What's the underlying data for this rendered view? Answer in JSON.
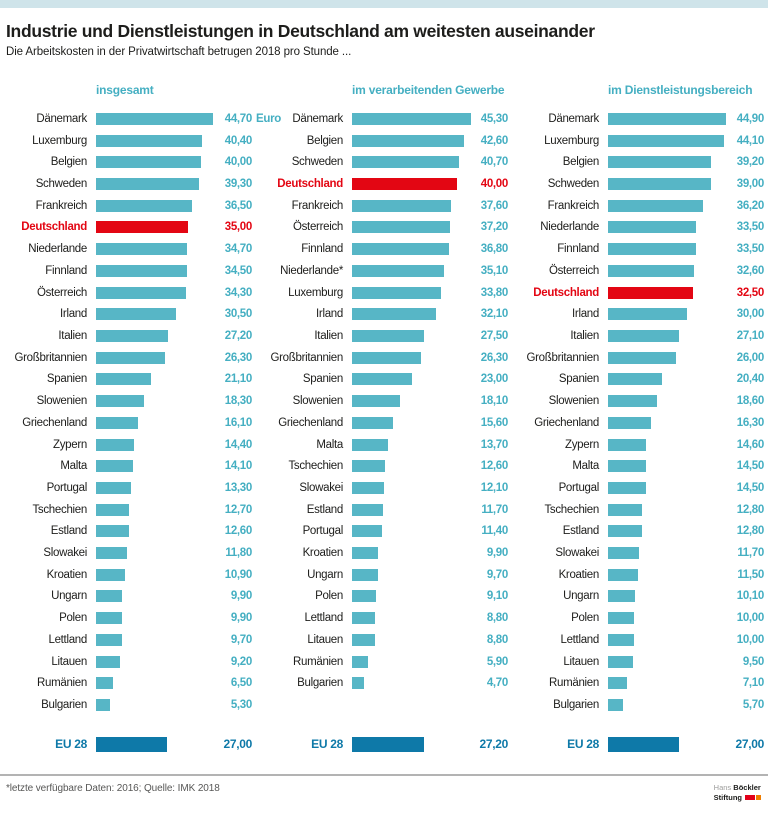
{
  "page": {
    "title": "Industrie und Dienstleistungen in Deutschland am weitesten auseinander",
    "subtitle": "Die Arbeitskosten in der Privatwirtschaft betrugen 2018 pro Stunde ...",
    "footnote": "*letzte verfügbare Daten: 2016; Quelle: IMK 2018",
    "logo": {
      "line1_light": "Hans",
      "line1_bold": "Böckler",
      "line2_bold": "Stiftung"
    }
  },
  "colors": {
    "top_strip": "#cfe4ea",
    "bar": "#57b6c6",
    "highlight": "#e30613",
    "eu": "#0e79a8",
    "value_text": "#45afc2",
    "label_text": "#1d1d1b",
    "footnote_text": "#575756"
  },
  "chart_data": [
    {
      "type": "bar",
      "title": "insgesamt",
      "unit": "Euro",
      "unit_on_first_row": true,
      "xmax": 45.3,
      "highlight_country": "Deutschland",
      "rows": [
        {
          "label": "Dänemark",
          "value": 44.7,
          "display": "44,70"
        },
        {
          "label": "Luxemburg",
          "value": 40.4,
          "display": "40,40"
        },
        {
          "label": "Belgien",
          "value": 40.0,
          "display": "40,00"
        },
        {
          "label": "Schweden",
          "value": 39.3,
          "display": "39,30"
        },
        {
          "label": "Frankreich",
          "value": 36.5,
          "display": "36,50"
        },
        {
          "label": "Deutschland",
          "value": 35.0,
          "display": "35,00"
        },
        {
          "label": "Niederlande",
          "value": 34.7,
          "display": "34,70"
        },
        {
          "label": "Finnland",
          "value": 34.5,
          "display": "34,50"
        },
        {
          "label": "Österreich",
          "value": 34.3,
          "display": "34,30"
        },
        {
          "label": "Irland",
          "value": 30.5,
          "display": "30,50"
        },
        {
          "label": "Italien",
          "value": 27.2,
          "display": "27,20"
        },
        {
          "label": "Großbritannien",
          "value": 26.3,
          "display": "26,30"
        },
        {
          "label": "Spanien",
          "value": 21.1,
          "display": "21,10"
        },
        {
          "label": "Slowenien",
          "value": 18.3,
          "display": "18,30"
        },
        {
          "label": "Griechenland",
          "value": 16.1,
          "display": "16,10"
        },
        {
          "label": "Zypern",
          "value": 14.4,
          "display": "14,40"
        },
        {
          "label": "Malta",
          "value": 14.1,
          "display": "14,10"
        },
        {
          "label": "Portugal",
          "value": 13.3,
          "display": "13,30"
        },
        {
          "label": "Tschechien",
          "value": 12.7,
          "display": "12,70"
        },
        {
          "label": "Estland",
          "value": 12.6,
          "display": "12,60"
        },
        {
          "label": "Slowakei",
          "value": 11.8,
          "display": "11,80"
        },
        {
          "label": "Kroatien",
          "value": 10.9,
          "display": "10,90"
        },
        {
          "label": "Ungarn",
          "value": 9.9,
          "display": "9,90"
        },
        {
          "label": "Polen",
          "value": 9.9,
          "display": "9,90"
        },
        {
          "label": "Lettland",
          "value": 9.7,
          "display": "9,70"
        },
        {
          "label": "Litauen",
          "value": 9.2,
          "display": "9,20"
        },
        {
          "label": "Rumänien",
          "value": 6.5,
          "display": "6,50"
        },
        {
          "label": "Bulgarien",
          "value": 5.3,
          "display": "5,30"
        }
      ],
      "eu_row": {
        "label": "EU 28",
        "value": 27.0,
        "display": "27,00"
      }
    },
    {
      "type": "bar",
      "title": "im verarbeitenden Gewerbe",
      "unit": "Euro",
      "unit_on_first_row": false,
      "xmax": 45.3,
      "highlight_country": "Deutschland",
      "rows": [
        {
          "label": "Dänemark",
          "value": 45.3,
          "display": "45,30"
        },
        {
          "label": "Belgien",
          "value": 42.6,
          "display": "42,60"
        },
        {
          "label": "Schweden",
          "value": 40.7,
          "display": "40,70"
        },
        {
          "label": "Deutschland",
          "value": 40.0,
          "display": "40,00"
        },
        {
          "label": "Frankreich",
          "value": 37.6,
          "display": "37,60"
        },
        {
          "label": "Österreich",
          "value": 37.2,
          "display": "37,20"
        },
        {
          "label": "Finnland",
          "value": 36.8,
          "display": "36,80"
        },
        {
          "label": "Niederlande*",
          "value": 35.1,
          "display": "35,10"
        },
        {
          "label": "Luxemburg",
          "value": 33.8,
          "display": "33,80"
        },
        {
          "label": "Irland",
          "value": 32.1,
          "display": "32,10"
        },
        {
          "label": "Italien",
          "value": 27.5,
          "display": "27,50"
        },
        {
          "label": "Großbritannien",
          "value": 26.3,
          "display": "26,30"
        },
        {
          "label": "Spanien",
          "value": 23.0,
          "display": "23,00"
        },
        {
          "label": "Slowenien",
          "value": 18.1,
          "display": "18,10"
        },
        {
          "label": "Griechenland",
          "value": 15.6,
          "display": "15,60"
        },
        {
          "label": "Malta",
          "value": 13.7,
          "display": "13,70"
        },
        {
          "label": "Tschechien",
          "value": 12.6,
          "display": "12,60"
        },
        {
          "label": "Slowakei",
          "value": 12.1,
          "display": "12,10"
        },
        {
          "label": "Estland",
          "value": 11.7,
          "display": "11,70"
        },
        {
          "label": "Portugal",
          "value": 11.4,
          "display": "11,40"
        },
        {
          "label": "Kroatien",
          "value": 9.9,
          "display": "9,90"
        },
        {
          "label": "Ungarn",
          "value": 9.7,
          "display": "9,70"
        },
        {
          "label": "Polen",
          "value": 9.1,
          "display": "9,10"
        },
        {
          "label": "Lettland",
          "value": 8.8,
          "display": "8,80"
        },
        {
          "label": "Litauen",
          "value": 8.8,
          "display": "8,80"
        },
        {
          "label": "Rumänien",
          "value": 5.9,
          "display": "5,90"
        },
        {
          "label": "Bulgarien",
          "value": 4.7,
          "display": "4,70"
        }
      ],
      "eu_row": {
        "label": "EU 28",
        "value": 27.2,
        "display": "27,20"
      }
    },
    {
      "type": "bar",
      "title": "im Dienstleistungsbereich",
      "unit": "Euro",
      "unit_on_first_row": false,
      "xmax": 45.3,
      "highlight_country": "Deutschland",
      "rows": [
        {
          "label": "Dänemark",
          "value": 44.9,
          "display": "44,90"
        },
        {
          "label": "Luxemburg",
          "value": 44.1,
          "display": "44,10"
        },
        {
          "label": "Belgien",
          "value": 39.2,
          "display": "39,20"
        },
        {
          "label": "Schweden",
          "value": 39.0,
          "display": "39,00"
        },
        {
          "label": "Frankreich",
          "value": 36.2,
          "display": "36,20"
        },
        {
          "label": "Niederlande",
          "value": 33.5,
          "display": "33,50"
        },
        {
          "label": "Finnland",
          "value": 33.5,
          "display": "33,50"
        },
        {
          "label": "Österreich",
          "value": 32.6,
          "display": "32,60"
        },
        {
          "label": "Deutschland",
          "value": 32.5,
          "display": "32,50"
        },
        {
          "label": "Irland",
          "value": 30.0,
          "display": "30,00"
        },
        {
          "label": "Italien",
          "value": 27.1,
          "display": "27,10"
        },
        {
          "label": "Großbritannien",
          "value": 26.0,
          "display": "26,00"
        },
        {
          "label": "Spanien",
          "value": 20.4,
          "display": "20,40"
        },
        {
          "label": "Slowenien",
          "value": 18.6,
          "display": "18,60"
        },
        {
          "label": "Griechenland",
          "value": 16.3,
          "display": "16,30"
        },
        {
          "label": "Zypern",
          "value": 14.6,
          "display": "14,60"
        },
        {
          "label": "Malta",
          "value": 14.5,
          "display": "14,50"
        },
        {
          "label": "Portugal",
          "value": 14.5,
          "display": "14,50"
        },
        {
          "label": "Tschechien",
          "value": 12.8,
          "display": "12,80"
        },
        {
          "label": "Estland",
          "value": 12.8,
          "display": "12,80"
        },
        {
          "label": "Slowakei",
          "value": 11.7,
          "display": "11,70"
        },
        {
          "label": "Kroatien",
          "value": 11.5,
          "display": "11,50"
        },
        {
          "label": "Ungarn",
          "value": 10.1,
          "display": "10,10"
        },
        {
          "label": "Polen",
          "value": 10.0,
          "display": "10,00"
        },
        {
          "label": "Lettland",
          "value": 10.0,
          "display": "10,00"
        },
        {
          "label": "Litauen",
          "value": 9.5,
          "display": "9,50"
        },
        {
          "label": "Rumänien",
          "value": 7.1,
          "display": "7,10"
        },
        {
          "label": "Bulgarien",
          "value": 5.7,
          "display": "5,70"
        }
      ],
      "eu_row": {
        "label": "EU 28",
        "value": 27.0,
        "display": "27,00"
      }
    }
  ]
}
